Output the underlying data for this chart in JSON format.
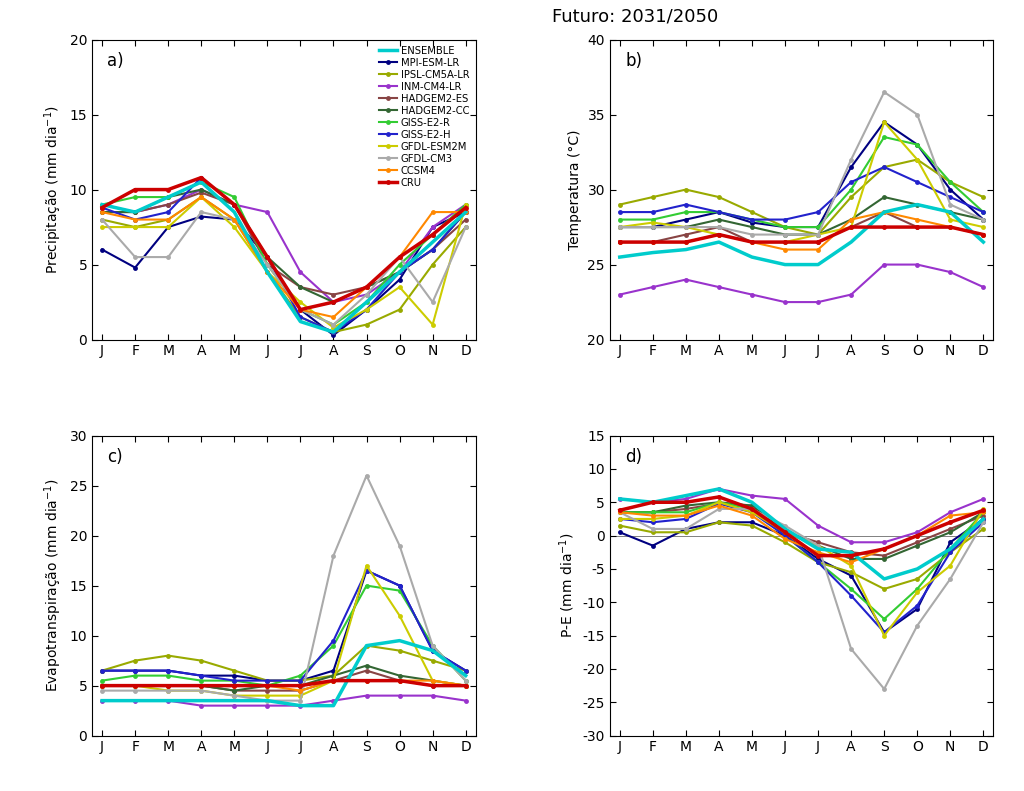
{
  "title": "Futuro: 2031/2050",
  "months": [
    "J",
    "F",
    "M",
    "A",
    "M",
    "J",
    "J",
    "A",
    "S",
    "O",
    "N",
    "D"
  ],
  "models": [
    "ENSEMBLE",
    "MPI-ESM-LR",
    "IPSL-CM5A-LR",
    "INM-CM4-LR",
    "HADGEM2-ES",
    "HADGEM2-CC",
    "GISS-E2-R",
    "GISS-E2-H",
    "GFDL-ESM2M",
    "GFDL-CM3",
    "CCSM4",
    "CRU"
  ],
  "colors": [
    "#00CCCC",
    "#000080",
    "#99AA00",
    "#9933CC",
    "#884444",
    "#336633",
    "#33CC33",
    "#2222CC",
    "#CCCC00",
    "#AAAAAA",
    "#FF8800",
    "#CC0000"
  ],
  "linewidths": [
    2.5,
    1.5,
    1.5,
    1.5,
    1.5,
    1.5,
    1.5,
    1.5,
    1.5,
    1.5,
    1.5,
    2.5
  ],
  "has_marker": [
    false,
    true,
    true,
    true,
    true,
    true,
    true,
    true,
    true,
    true,
    true,
    true
  ],
  "precip": {
    "ENSEMBLE": [
      9.0,
      8.5,
      9.5,
      10.5,
      8.5,
      4.5,
      1.2,
      0.5,
      2.5,
      4.5,
      6.5,
      8.5
    ],
    "MPI-ESM-LR": [
      6.0,
      4.8,
      7.5,
      8.2,
      8.0,
      5.5,
      2.0,
      0.3,
      2.0,
      4.0,
      7.5,
      8.5
    ],
    "IPSL-CM5A-LR": [
      8.0,
      7.5,
      8.0,
      9.5,
      8.0,
      4.5,
      1.5,
      0.5,
      1.0,
      2.0,
      5.0,
      7.5
    ],
    "INM-CM4-LR": [
      9.0,
      8.5,
      9.0,
      10.0,
      9.0,
      8.5,
      4.5,
      2.5,
      3.0,
      4.5,
      7.5,
      9.0
    ],
    "HADGEM2-ES": [
      8.5,
      8.5,
      9.0,
      9.8,
      9.0,
      5.0,
      3.5,
      3.0,
      3.5,
      4.5,
      6.0,
      8.0
    ],
    "HADGEM2-CC": [
      8.5,
      8.5,
      9.5,
      10.0,
      9.0,
      5.5,
      3.5,
      2.5,
      3.5,
      4.5,
      6.0,
      8.5
    ],
    "GISS-E2-R": [
      9.0,
      9.5,
      9.5,
      10.5,
      9.5,
      5.0,
      2.0,
      1.0,
      2.5,
      5.0,
      7.0,
      9.0
    ],
    "GISS-E2-H": [
      8.8,
      8.0,
      8.5,
      10.8,
      9.0,
      5.5,
      1.5,
      0.5,
      2.0,
      4.5,
      6.0,
      8.5
    ],
    "GFDL-ESM2M": [
      7.5,
      7.5,
      7.5,
      9.5,
      7.5,
      4.5,
      2.5,
      0.8,
      2.0,
      3.5,
      1.0,
      9.0
    ],
    "GFDL-CM3": [
      8.0,
      5.5,
      5.5,
      8.5,
      8.0,
      5.0,
      2.0,
      1.0,
      3.0,
      5.5,
      2.5,
      7.5
    ],
    "CCSM4": [
      8.5,
      8.0,
      8.0,
      9.5,
      8.0,
      4.5,
      2.0,
      1.5,
      3.5,
      5.5,
      8.5,
      8.5
    ],
    "CRU": [
      8.8,
      10.0,
      10.0,
      10.8,
      9.0,
      5.5,
      2.0,
      2.5,
      3.5,
      5.5,
      7.0,
      8.8
    ]
  },
  "temp": {
    "ENSEMBLE": [
      25.5,
      25.8,
      26.0,
      26.5,
      25.5,
      25.0,
      25.0,
      26.5,
      28.5,
      29.0,
      28.5,
      26.5
    ],
    "MPI-ESM-LR": [
      27.5,
      27.5,
      28.0,
      28.5,
      27.8,
      27.5,
      27.5,
      31.5,
      34.5,
      33.0,
      30.0,
      28.0
    ],
    "IPSL-CM5A-LR": [
      29.0,
      29.5,
      30.0,
      29.5,
      28.5,
      27.5,
      27.0,
      29.5,
      31.5,
      32.0,
      30.5,
      29.5
    ],
    "INM-CM4-LR": [
      23.0,
      23.5,
      24.0,
      23.5,
      23.0,
      22.5,
      22.5,
      23.0,
      25.0,
      25.0,
      24.5,
      23.5
    ],
    "HADGEM2-ES": [
      26.5,
      26.5,
      27.0,
      27.5,
      26.5,
      26.5,
      26.5,
      27.5,
      28.5,
      27.5,
      27.5,
      27.0
    ],
    "HADGEM2-CC": [
      27.5,
      27.5,
      27.5,
      28.0,
      27.5,
      27.0,
      27.0,
      28.0,
      29.5,
      29.0,
      28.5,
      28.0
    ],
    "GISS-E2-R": [
      28.0,
      28.0,
      28.5,
      28.5,
      28.0,
      27.5,
      27.5,
      30.0,
      33.5,
      33.0,
      30.5,
      28.5
    ],
    "GISS-E2-H": [
      28.5,
      28.5,
      29.0,
      28.5,
      28.0,
      28.0,
      28.5,
      30.5,
      31.5,
      30.5,
      29.5,
      28.5
    ],
    "GFDL-ESM2M": [
      27.5,
      27.8,
      27.5,
      27.0,
      26.5,
      26.5,
      27.0,
      27.5,
      34.5,
      32.0,
      28.0,
      27.5
    ],
    "GFDL-CM3": [
      27.5,
      27.5,
      27.5,
      27.5,
      27.0,
      27.0,
      27.0,
      32.0,
      36.5,
      35.0,
      29.0,
      28.0
    ],
    "CCSM4": [
      26.5,
      26.5,
      26.5,
      27.0,
      26.5,
      26.0,
      26.0,
      28.0,
      28.5,
      28.0,
      27.5,
      27.0
    ],
    "CRU": [
      26.5,
      26.5,
      26.5,
      27.0,
      26.5,
      26.5,
      26.5,
      27.5,
      27.5,
      27.5,
      27.5,
      27.0
    ]
  },
  "evap": {
    "ENSEMBLE": [
      3.5,
      3.5,
      3.5,
      3.5,
      3.5,
      3.5,
      3.0,
      3.0,
      9.0,
      9.5,
      8.5,
      6.0
    ],
    "MPI-ESM-LR": [
      6.5,
      6.5,
      6.5,
      6.0,
      6.0,
      5.5,
      5.5,
      6.5,
      16.5,
      15.0,
      8.5,
      6.5
    ],
    "IPSL-CM5A-LR": [
      6.5,
      7.5,
      8.0,
      7.5,
      6.5,
      5.5,
      5.5,
      6.0,
      9.0,
      8.5,
      7.5,
      6.5
    ],
    "INM-CM4-LR": [
      3.5,
      3.5,
      3.5,
      3.0,
      3.0,
      3.0,
      3.0,
      3.5,
      4.0,
      4.0,
      4.0,
      3.5
    ],
    "HADGEM2-ES": [
      5.0,
      5.0,
      5.0,
      5.0,
      4.5,
      4.5,
      4.5,
      5.5,
      6.5,
      5.5,
      5.0,
      5.0
    ],
    "HADGEM2-CC": [
      5.0,
      5.0,
      5.0,
      5.0,
      4.5,
      5.0,
      5.0,
      6.0,
      7.0,
      6.0,
      5.5,
      5.0
    ],
    "GISS-E2-R": [
      5.5,
      6.0,
      6.0,
      5.5,
      5.5,
      5.0,
      6.0,
      9.0,
      15.0,
      14.5,
      9.0,
      5.5
    ],
    "GISS-E2-H": [
      6.5,
      6.5,
      6.5,
      6.0,
      5.5,
      5.5,
      5.5,
      9.5,
      16.5,
      15.0,
      8.5,
      6.5
    ],
    "GFDL-ESM2M": [
      5.0,
      5.0,
      4.5,
      4.5,
      4.0,
      4.0,
      4.0,
      5.5,
      17.0,
      12.0,
      5.5,
      5.0
    ],
    "GFDL-CM3": [
      4.5,
      4.5,
      4.5,
      4.5,
      4.0,
      3.5,
      3.5,
      18.0,
      26.0,
      19.0,
      9.0,
      5.5
    ],
    "CCSM4": [
      5.0,
      5.0,
      5.0,
      5.0,
      5.0,
      5.0,
      4.5,
      5.5,
      5.5,
      5.5,
      5.5,
      5.0
    ],
    "CRU": [
      5.0,
      5.0,
      5.0,
      5.0,
      5.0,
      5.0,
      5.0,
      5.5,
      5.5,
      5.5,
      5.0,
      5.0
    ]
  },
  "pe": {
    "ENSEMBLE": [
      5.5,
      5.0,
      6.0,
      7.0,
      5.0,
      1.0,
      -2.0,
      -2.5,
      -6.5,
      -5.0,
      -2.0,
      2.5
    ],
    "MPI-ESM-LR": [
      0.5,
      -1.5,
      1.0,
      2.0,
      2.0,
      0.0,
      -3.5,
      -6.0,
      -14.5,
      -11.0,
      -1.0,
      2.5
    ],
    "IPSL-CM5A-LR": [
      1.5,
      0.5,
      0.5,
      2.0,
      1.5,
      -1.0,
      -4.0,
      -5.5,
      -8.0,
      -6.5,
      -2.5,
      1.0
    ],
    "INM-CM4-LR": [
      5.5,
      5.0,
      5.5,
      7.0,
      6.0,
      5.5,
      1.5,
      -1.0,
      -1.0,
      0.5,
      3.5,
      5.5
    ],
    "HADGEM2-ES": [
      3.5,
      3.5,
      4.0,
      4.8,
      4.5,
      0.5,
      -1.0,
      -2.5,
      -3.0,
      -1.0,
      1.0,
      3.0
    ],
    "HADGEM2-CC": [
      3.5,
      3.5,
      4.5,
      5.0,
      4.5,
      0.5,
      -1.5,
      -3.5,
      -3.5,
      -1.5,
      0.5,
      3.5
    ],
    "GISS-E2-R": [
      3.5,
      3.5,
      3.5,
      5.0,
      4.0,
      0.0,
      -4.0,
      -8.0,
      -12.5,
      -8.0,
      -2.0,
      3.5
    ],
    "GISS-E2-H": [
      2.5,
      2.0,
      2.5,
      4.8,
      3.5,
      0.0,
      -4.0,
      -9.0,
      -14.5,
      -10.5,
      -2.5,
      2.0
    ],
    "GFDL-ESM2M": [
      2.5,
      2.5,
      3.0,
      5.0,
      3.5,
      0.5,
      -1.5,
      -4.5,
      -15.0,
      -8.5,
      -4.5,
      4.0
    ],
    "GFDL-CM3": [
      3.5,
      1.0,
      1.0,
      4.0,
      4.0,
      1.5,
      -1.5,
      -17.0,
      -23.0,
      -13.5,
      -6.5,
      2.0
    ],
    "CCSM4": [
      3.5,
      3.0,
      3.0,
      4.5,
      3.0,
      -0.5,
      -2.5,
      -4.0,
      -2.0,
      0.0,
      3.0,
      3.5
    ],
    "CRU": [
      3.8,
      5.0,
      5.0,
      5.8,
      4.0,
      0.5,
      -3.0,
      -3.0,
      -2.0,
      0.0,
      2.0,
      3.8
    ]
  },
  "ylabel_a": "Precipitação (mm dia$^{-1}$)",
  "ylabel_b": "Temperatura (°C)",
  "ylabel_c": "Evapotranspiração (mm dia$^{-1}$)",
  "ylabel_d": "P-E (mm dia$^{-1}$)"
}
